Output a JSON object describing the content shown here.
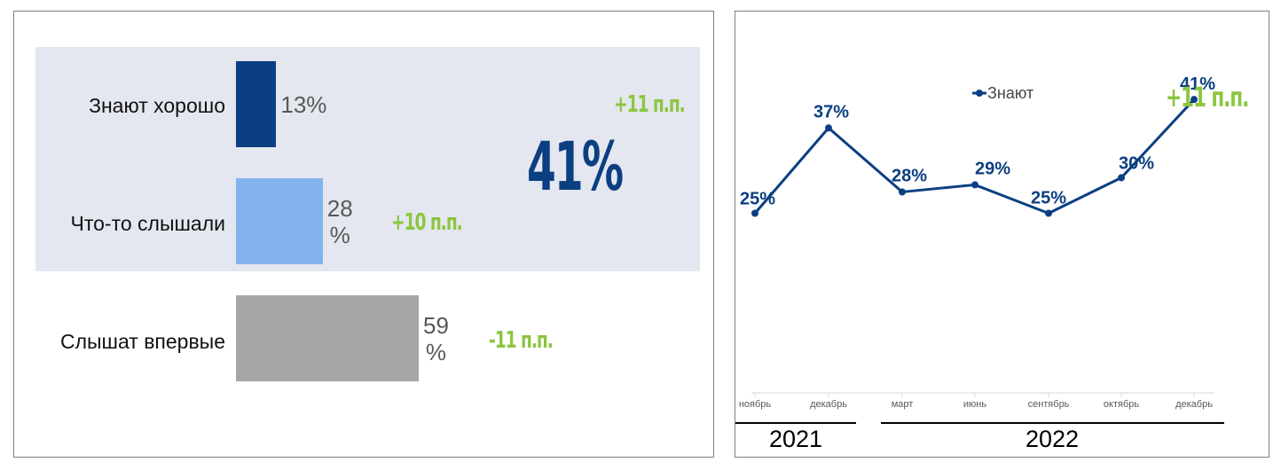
{
  "colors": {
    "dark_blue": "#0b3f82",
    "light_blue": "#82b3ec",
    "gray": "#a6a6a6",
    "green": "#8cc63f",
    "highlight_bg": "#e4e7ef"
  },
  "chart_data": [
    {
      "type": "bar",
      "orientation": "horizontal",
      "categories": [
        "Знают хорошо",
        "Что-то слышали",
        "Слышат впервые"
      ],
      "values": [
        13,
        28,
        59
      ],
      "value_labels": [
        "13%",
        "28\n%",
        "59\n%"
      ],
      "deltas": [
        "+11 п.п.",
        "+10 п.п.",
        "-11 п.п."
      ],
      "series_colors": [
        "#0b3f82",
        "#82b3ec",
        "#a6a6a6"
      ],
      "xlim": [
        0,
        59
      ],
      "combined_total": "41%",
      "combined_delta": "+11 п.п."
    },
    {
      "type": "line",
      "series": [
        {
          "name": "Знают",
          "color": "#0b3f82",
          "x": [
            "ноябрь",
            "декабрь",
            "март",
            "июнь",
            "сентябрь",
            "октябрь",
            "декабрь"
          ],
          "values": [
            25,
            37,
            28,
            29,
            25,
            30,
            41
          ],
          "labels": [
            "25%",
            "37%",
            "28%",
            "29%",
            "25%",
            "30%",
            "41%"
          ]
        }
      ],
      "years": [
        {
          "label": "2021",
          "months": [
            "ноябрь",
            "декабрь"
          ]
        },
        {
          "label": "2022",
          "months": [
            "март",
            "июнь",
            "сентябрь",
            "октябрь",
            "декабрь"
          ]
        }
      ],
      "ylim": [
        0,
        50
      ],
      "delta": "+11 п.п.",
      "legend_position": "top"
    }
  ]
}
